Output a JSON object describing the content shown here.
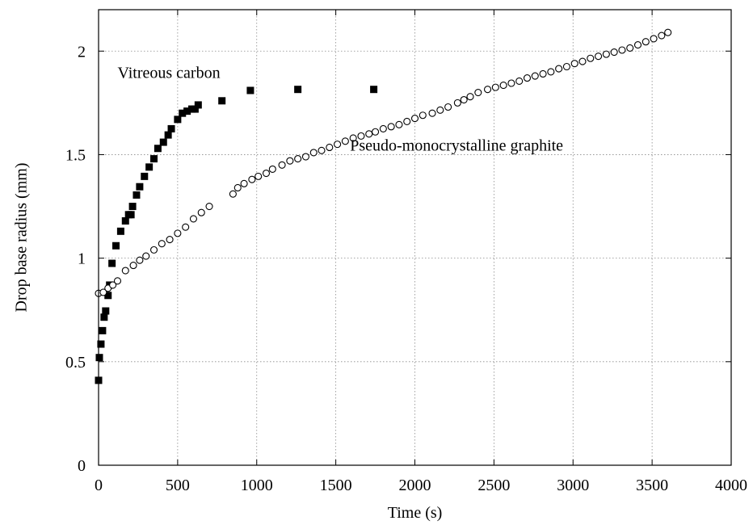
{
  "chart_data": {
    "type": "scatter",
    "title": "",
    "xlabel": "Time (s)",
    "ylabel": "Drop base radius (mm)",
    "xlim": [
      0,
      4000
    ],
    "ylim": [
      0,
      2.2
    ],
    "xticks": [
      0,
      500,
      1000,
      1500,
      2000,
      2500,
      3000,
      3500,
      4000
    ],
    "yticks": [
      0,
      0.5,
      1,
      1.5,
      2
    ],
    "xtick_labels": [
      "0",
      "500",
      "1000",
      "1500",
      "2000",
      "2500",
      "3000",
      "3500",
      "4000"
    ],
    "ytick_labels": [
      "0",
      "0.5",
      "1",
      "1.5",
      "2"
    ],
    "grid": true,
    "legend": "none",
    "series": [
      {
        "name": "Vitreous carbon",
        "marker": "filled-square",
        "color": "#000000",
        "x": [
          0,
          5,
          15,
          25,
          35,
          45,
          60,
          70,
          85,
          110,
          140,
          170,
          190,
          205,
          215,
          240,
          260,
          290,
          320,
          350,
          375,
          410,
          440,
          460,
          500,
          530,
          560,
          590,
          610,
          630,
          780,
          960,
          1260,
          1740
        ],
        "y": [
          0.41,
          0.52,
          0.585,
          0.65,
          0.715,
          0.745,
          0.82,
          0.87,
          0.975,
          1.06,
          1.13,
          1.18,
          1.21,
          1.21,
          1.25,
          1.305,
          1.345,
          1.395,
          1.44,
          1.48,
          1.53,
          1.56,
          1.595,
          1.625,
          1.67,
          1.7,
          1.71,
          1.72,
          1.72,
          1.74,
          1.76,
          1.81,
          1.815,
          1.815
        ]
      },
      {
        "name": "Pseudo-monocrystalline graphite",
        "marker": "open-circle",
        "color": "#000000",
        "x": [
          0,
          30,
          60,
          90,
          120,
          170,
          220,
          260,
          300,
          350,
          400,
          450,
          500,
          550,
          600,
          650,
          700,
          850,
          880,
          920,
          970,
          1010,
          1060,
          1100,
          1160,
          1210,
          1260,
          1310,
          1360,
          1410,
          1460,
          1510,
          1560,
          1610,
          1660,
          1710,
          1750,
          1800,
          1850,
          1900,
          1950,
          2000,
          2050,
          2110,
          2160,
          2210,
          2270,
          2310,
          2350,
          2400,
          2460,
          2510,
          2560,
          2610,
          2660,
          2710,
          2760,
          2810,
          2860,
          2910,
          2960,
          3010,
          3060,
          3110,
          3160,
          3210,
          3260,
          3310,
          3360,
          3410,
          3460,
          3510,
          3560,
          3600
        ],
        "y": [
          0.83,
          0.835,
          0.855,
          0.87,
          0.89,
          0.94,
          0.965,
          0.99,
          1.01,
          1.04,
          1.07,
          1.09,
          1.12,
          1.15,
          1.19,
          1.22,
          1.25,
          1.31,
          1.34,
          1.36,
          1.38,
          1.395,
          1.41,
          1.43,
          1.45,
          1.47,
          1.48,
          1.49,
          1.51,
          1.52,
          1.535,
          1.55,
          1.565,
          1.58,
          1.59,
          1.6,
          1.61,
          1.625,
          1.635,
          1.645,
          1.66,
          1.675,
          1.69,
          1.7,
          1.715,
          1.73,
          1.75,
          1.765,
          1.78,
          1.8,
          1.815,
          1.825,
          1.835,
          1.845,
          1.855,
          1.87,
          1.88,
          1.89,
          1.9,
          1.915,
          1.925,
          1.94,
          1.95,
          1.965,
          1.975,
          1.985,
          1.995,
          2.005,
          2.015,
          2.03,
          2.045,
          2.06,
          2.075,
          2.09
        ]
      }
    ],
    "annotations": [
      {
        "text": "Vitreous carbon",
        "x": 120,
        "y": 1.87
      },
      {
        "text": "Pseudo-monocrystalline graphite",
        "x": 1590,
        "y": 1.52
      }
    ]
  }
}
